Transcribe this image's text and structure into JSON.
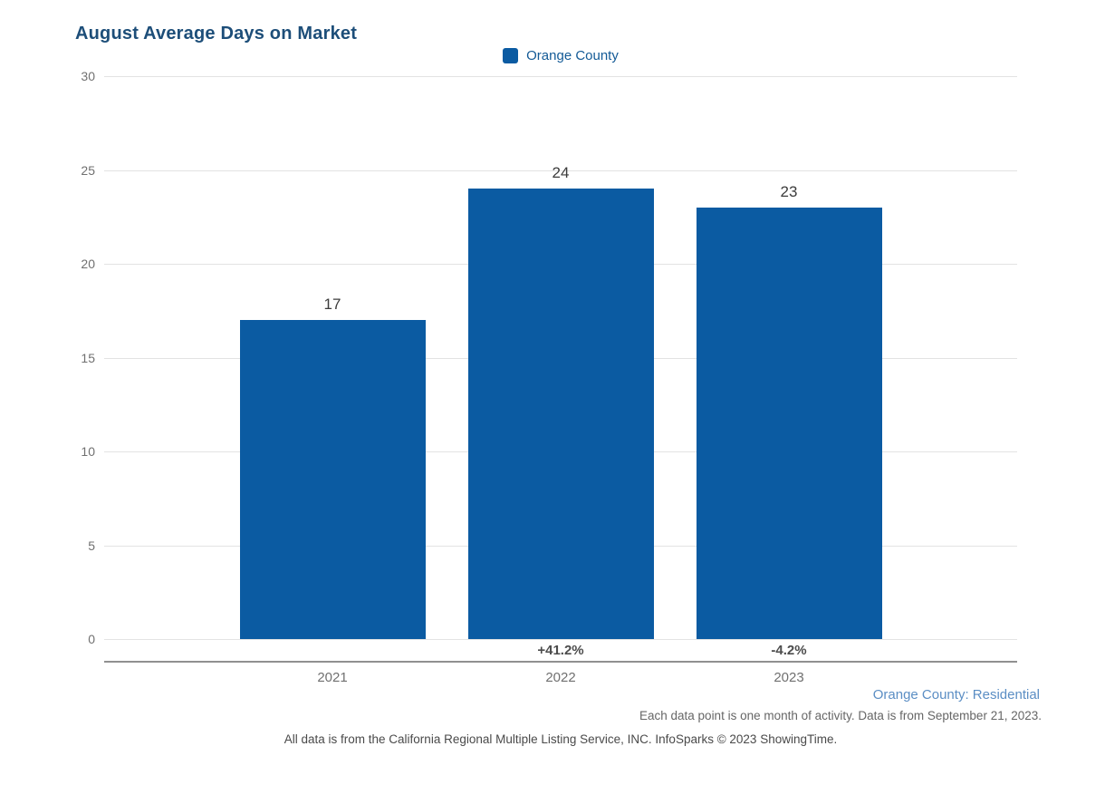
{
  "title": "August Average Days on Market",
  "legend": {
    "label": "Orange County",
    "swatch_color": "#0b5ba2"
  },
  "chart_data": {
    "type": "bar",
    "title": "August Average Days on Market",
    "categories": [
      "2021",
      "2022",
      "2023"
    ],
    "series": [
      {
        "name": "Orange County",
        "values": [
          17,
          24,
          23
        ]
      }
    ],
    "value_labels": [
      "17",
      "24",
      "23"
    ],
    "pct_change_labels": [
      "",
      "+41.2%",
      "-4.2%"
    ],
    "ylim": [
      0,
      30
    ],
    "yticks": [
      0,
      5,
      10,
      15,
      20,
      25,
      30
    ],
    "grid": true,
    "legend_position": "top-center",
    "bar_color": "#0b5ba2"
  },
  "footer": {
    "region_label": "Orange County: Residential",
    "note": "Each data point is one month of activity. Data is from September 21, 2023.",
    "disclaimer": "All data is from the California Regional Multiple Listing Service, INC. InfoSparks © 2023 ShowingTime."
  }
}
